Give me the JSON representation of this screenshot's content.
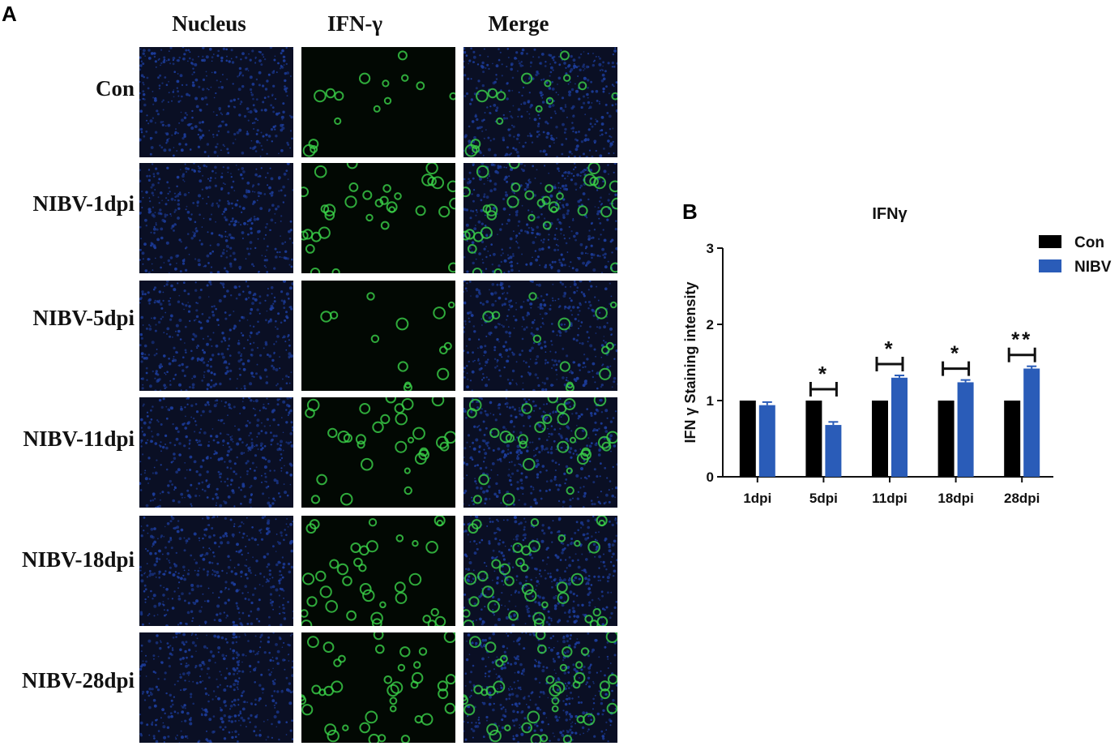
{
  "panel_a": {
    "letter": "A",
    "columns": [
      "Nucleus",
      "IFN-γ",
      "Merge"
    ],
    "rows": [
      "Con",
      "NIBV-1dpi",
      "NIBV-5dpi",
      "NIBV-11dpi",
      "NIBV-18dpi",
      "NIBV-28dpi"
    ],
    "green_cell_fraction": [
      0.25,
      0.55,
      0.22,
      0.5,
      0.6,
      0.65
    ]
  },
  "panel_b": {
    "letter": "B"
  },
  "colors": {
    "con": "#000000",
    "nibv": "#2a5cb8",
    "nucleus": "#1c3c9a",
    "ifn": "#3bd34a",
    "tile_bg": "#0a0f24"
  },
  "chart_data": {
    "type": "bar",
    "title": "IFNγ",
    "ylabel": "IFN γ Staining intensity",
    "xlabel": "",
    "categories": [
      "1dpi",
      "5dpi",
      "11dpi",
      "18dpi",
      "28dpi"
    ],
    "ylim": [
      0,
      3
    ],
    "yticks": [
      "0",
      "1",
      "2",
      "3"
    ],
    "legend_position": "top-right",
    "series": [
      {
        "name": "Con",
        "values": [
          1.0,
          1.0,
          1.0,
          1.0,
          1.0
        ],
        "errors": [
          0,
          0,
          0,
          0,
          0
        ]
      },
      {
        "name": "NIBV",
        "values": [
          0.94,
          0.68,
          1.3,
          1.24,
          1.42
        ],
        "errors": [
          0.04,
          0.04,
          0.03,
          0.03,
          0.03
        ]
      }
    ],
    "significance": [
      "",
      "*",
      "*",
      "*",
      "**"
    ]
  }
}
